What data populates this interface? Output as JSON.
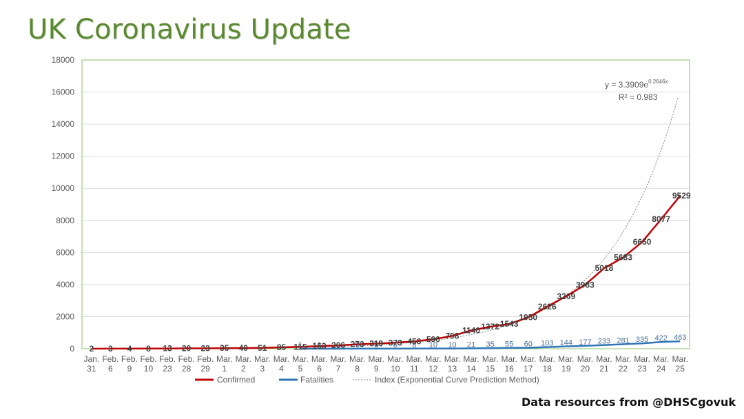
{
  "page": {
    "title": "UK Coronavirus Update",
    "source": "Data resources from @DHSCgovuk"
  },
  "colors": {
    "title": "#5a8a2e",
    "plot_border": "#8fbf6a",
    "confirmed": "#c00000",
    "fatalities": "#2e75b6",
    "index": "#7f7f7f",
    "grid": "#d9d9d9"
  },
  "chart_data": {
    "type": "line",
    "title": "",
    "xlabel": "",
    "ylabel": "",
    "ylim": [
      0,
      18000
    ],
    "yticks": [
      0,
      2000,
      4000,
      6000,
      8000,
      10000,
      12000,
      14000,
      16000,
      18000
    ],
    "grid": true,
    "legend_position": "bottom",
    "categories": [
      [
        "Jan.",
        "31"
      ],
      [
        "Feb.",
        "6"
      ],
      [
        "Feb.",
        "9"
      ],
      [
        "Feb.",
        "10"
      ],
      [
        "Feb.",
        "23"
      ],
      [
        "Feb.",
        "28"
      ],
      [
        "Feb.",
        "29"
      ],
      [
        "Mar.",
        "1"
      ],
      [
        "Mar.",
        "2"
      ],
      [
        "Mar.",
        "3"
      ],
      [
        "Mar.",
        "4"
      ],
      [
        "Mar.",
        "5"
      ],
      [
        "Mar.",
        "6"
      ],
      [
        "Mar.",
        "7"
      ],
      [
        "Mar.",
        "8"
      ],
      [
        "Mar.",
        "9"
      ],
      [
        "Mar.",
        "10"
      ],
      [
        "Mar.",
        "11"
      ],
      [
        "Mar.",
        "12"
      ],
      [
        "Mar.",
        "13"
      ],
      [
        "Mar.",
        "14"
      ],
      [
        "Mar.",
        "15"
      ],
      [
        "Mar.",
        "16"
      ],
      [
        "Mar.",
        "17"
      ],
      [
        "Mar.",
        "18"
      ],
      [
        "Mar.",
        "19"
      ],
      [
        "Mar.",
        "20"
      ],
      [
        "Mar.",
        "21"
      ],
      [
        "Mar.",
        "22"
      ],
      [
        "Mar.",
        "23"
      ],
      [
        "Mar.",
        "24"
      ],
      [
        "Mar.",
        "25"
      ]
    ],
    "series": [
      {
        "name": "Confirmed",
        "values": [
          2,
          3,
          4,
          8,
          13,
          20,
          23,
          35,
          40,
          51,
          85,
          115,
          163,
          206,
          273,
          319,
          373,
          456,
          590,
          798,
          1140,
          1372,
          1543,
          1950,
          2626,
          3269,
          3983,
          5018,
          5683,
          6650,
          8077,
          9529
        ]
      },
      {
        "name": "Fatalities",
        "values": [
          null,
          null,
          null,
          null,
          null,
          null,
          null,
          null,
          null,
          null,
          null,
          1,
          1,
          2,
          3,
          3,
          6,
          8,
          10,
          10,
          21,
          35,
          55,
          60,
          103,
          144,
          177,
          233,
          281,
          335,
          422,
          463
        ]
      },
      {
        "name": "Index (Exponential Curve Prediction Method)",
        "formula": {
          "a": 3.3909,
          "b": 0.2646
        }
      }
    ],
    "annotations": {
      "equation_prefix": "y = 3.3909e",
      "equation_exponent": "0.2646x",
      "r_squared": "R² = 0.983"
    }
  }
}
